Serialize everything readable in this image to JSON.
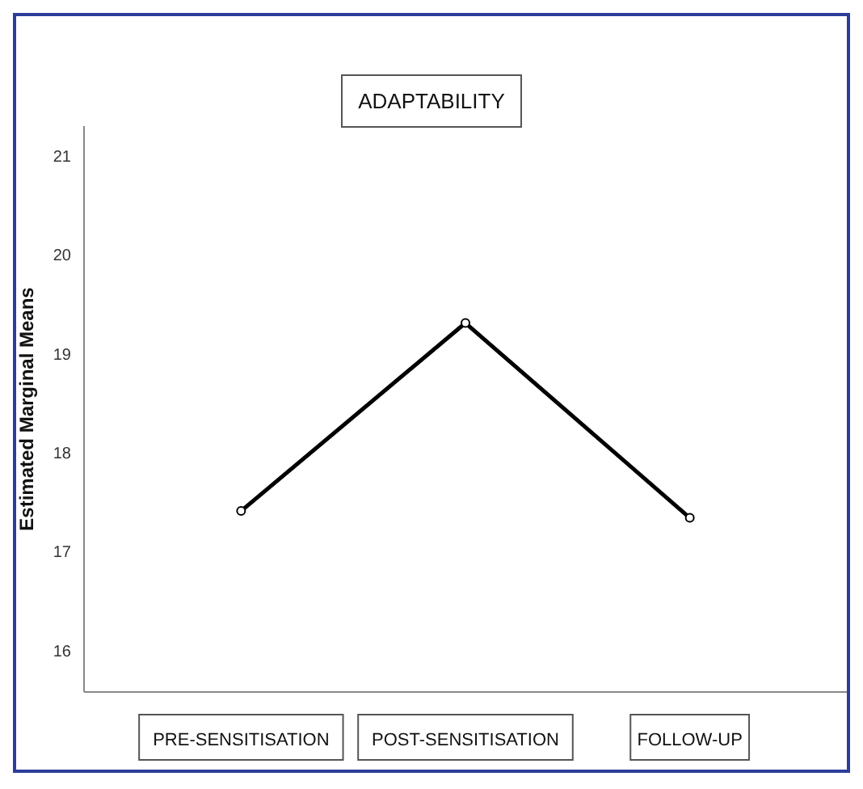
{
  "chart_data": {
    "type": "line",
    "title": "ADAPTABILITY",
    "ylabel": "Estimated Marginal Means",
    "categories": [
      "PRE-SENSITISATION",
      "POST-SENSITISATION",
      "FOLLOW-UP"
    ],
    "series": [
      {
        "color": "#000000",
        "values": [
          17.41,
          19.31,
          17.34
        ]
      }
    ],
    "ylim": [
      15.58,
      21.3
    ],
    "yticks": [
      16,
      17,
      18,
      19,
      20,
      21
    ],
    "grid": false,
    "marker": "circle",
    "line_style": "solid"
  }
}
